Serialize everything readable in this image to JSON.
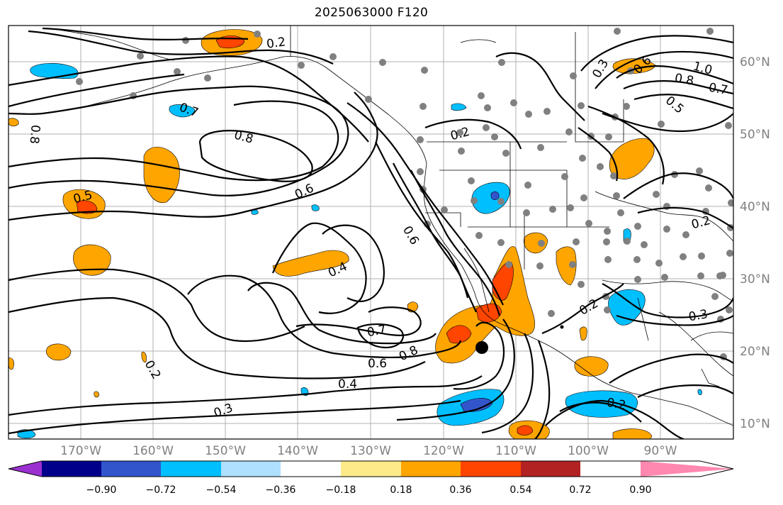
{
  "title": "2025063000 F120",
  "lon_labels": [
    "170°W",
    "160°W",
    "150°W",
    "140°W",
    "130°W",
    "120°W",
    "110°W",
    "100°W",
    "90°W"
  ],
  "lat_labels": [
    "60°N",
    "50°N",
    "40°N",
    "30°N",
    "20°N",
    "10°N"
  ],
  "contour_labels": [
    "0.2",
    "0.7",
    "0.8",
    "0.5",
    "0.6",
    "0.4",
    "0.7",
    "0.8",
    "0.6",
    "0.4",
    "0.3",
    "0.2",
    "0.6",
    "0.3",
    "0.8",
    "0.6",
    "1.0",
    "0.8",
    "0.7",
    "0.5",
    "0.2",
    "0.2",
    "0.2",
    "0.3",
    "0.2"
  ],
  "colorbar": {
    "tick_labels": [
      "−0.90",
      "−0.72",
      "−0.54",
      "−0.36",
      "−0.18",
      "0.18",
      "0.36",
      "0.54",
      "0.72",
      "0.90"
    ],
    "colors": [
      "#9b30d0",
      "#00008b",
      "#3355cc",
      "#00bfff",
      "#b0e0ff",
      "#ffffff",
      "#ffea8a",
      "#ffa500",
      "#ff4500",
      "#b22222",
      "#ff88b0"
    ]
  }
}
